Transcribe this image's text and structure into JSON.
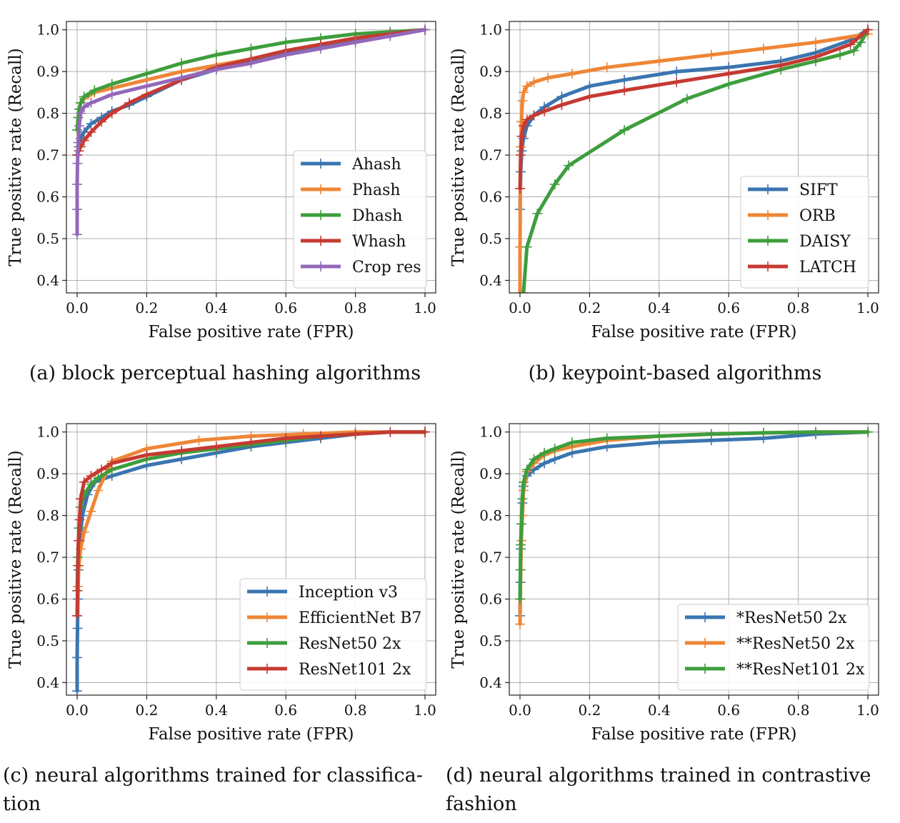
{
  "chart_data": [
    {
      "type": "line",
      "caption": "(a) block perceptual hashing algorithms",
      "xlabel": "False positive rate (FPR)",
      "ylabel": "True positive rate (Recall)",
      "xlim": [
        0.0,
        1.0
      ],
      "ylim": [
        0.37,
        1.02
      ],
      "xticks": [
        "0.0",
        "0.2",
        "0.4",
        "0.6",
        "0.8",
        "1.0"
      ],
      "yticks": [
        "0.4",
        "0.5",
        "0.6",
        "0.7",
        "0.8",
        "0.9",
        "1.0"
      ],
      "grid": true,
      "legend_position": "lower-right",
      "series": [
        {
          "name": "Ahash",
          "color": "#3a75b0",
          "x": [
            0.0,
            0.005,
            0.01,
            0.02,
            0.04,
            0.07,
            0.1,
            0.15,
            0.2,
            0.3,
            0.4,
            0.5,
            0.6,
            0.7,
            0.8,
            0.9,
            1.0
          ],
          "y": [
            0.7,
            0.72,
            0.74,
            0.755,
            0.775,
            0.79,
            0.805,
            0.82,
            0.84,
            0.88,
            0.905,
            0.925,
            0.945,
            0.96,
            0.975,
            0.99,
            1.0
          ]
        },
        {
          "name": "Phash",
          "color": "#ef8636",
          "x": [
            0.0,
            0.003,
            0.006,
            0.01,
            0.02,
            0.05,
            0.1,
            0.2,
            0.3,
            0.4,
            0.5,
            0.6,
            0.7,
            0.8,
            0.9,
            1.0
          ],
          "y": [
            0.76,
            0.79,
            0.81,
            0.825,
            0.835,
            0.85,
            0.86,
            0.88,
            0.9,
            0.915,
            0.93,
            0.95,
            0.965,
            0.98,
            0.99,
            1.0
          ]
        },
        {
          "name": "Dhash",
          "color": "#3d9e3d",
          "x": [
            0.0,
            0.003,
            0.006,
            0.01,
            0.02,
            0.05,
            0.1,
            0.2,
            0.3,
            0.4,
            0.5,
            0.6,
            0.7,
            0.8,
            0.9,
            1.0
          ],
          "y": [
            0.76,
            0.79,
            0.81,
            0.825,
            0.84,
            0.855,
            0.87,
            0.895,
            0.92,
            0.94,
            0.955,
            0.97,
            0.98,
            0.99,
            0.995,
            1.0
          ]
        },
        {
          "name": "Whash",
          "color": "#c53a32",
          "x": [
            0.0,
            0.005,
            0.01,
            0.02,
            0.04,
            0.07,
            0.1,
            0.15,
            0.2,
            0.3,
            0.4,
            0.5,
            0.6,
            0.7,
            0.8,
            0.9,
            1.0
          ],
          "y": [
            0.7,
            0.71,
            0.72,
            0.735,
            0.755,
            0.78,
            0.8,
            0.825,
            0.845,
            0.88,
            0.91,
            0.93,
            0.95,
            0.965,
            0.98,
            0.99,
            1.0
          ]
        },
        {
          "name": "Crop res",
          "color": "#9368b8",
          "x": [
            0.0,
            0.0,
            0.0,
            0.001,
            0.003,
            0.006,
            0.01,
            0.02,
            0.04,
            0.1,
            0.2,
            0.3,
            0.4,
            0.5,
            0.6,
            0.7,
            0.8,
            0.9,
            1.0
          ],
          "y": [
            0.51,
            0.57,
            0.63,
            0.68,
            0.73,
            0.77,
            0.8,
            0.815,
            0.825,
            0.845,
            0.865,
            0.885,
            0.905,
            0.92,
            0.94,
            0.955,
            0.97,
            0.985,
            1.0
          ]
        }
      ]
    },
    {
      "type": "line",
      "caption": "(b) keypoint-based algorithms",
      "xlabel": "False positive rate (FPR)",
      "ylabel": "True positive rate (Recall)",
      "xlim": [
        0.0,
        1.0
      ],
      "ylim": [
        0.37,
        1.02
      ],
      "xticks": [
        "0.0",
        "0.2",
        "0.4",
        "0.6",
        "0.8",
        "1.0"
      ],
      "yticks": [
        "0.4",
        "0.5",
        "0.6",
        "0.7",
        "0.8",
        "0.9",
        "1.0"
      ],
      "grid": true,
      "legend_position": "lower-right",
      "series": [
        {
          "name": "SIFT",
          "color": "#3a75b0",
          "x": [
            0.0,
            0.002,
            0.005,
            0.01,
            0.02,
            0.04,
            0.07,
            0.12,
            0.2,
            0.3,
            0.45,
            0.6,
            0.75,
            0.85,
            0.95,
            1.0
          ],
          "y": [
            0.57,
            0.66,
            0.71,
            0.74,
            0.77,
            0.795,
            0.815,
            0.84,
            0.865,
            0.88,
            0.9,
            0.91,
            0.925,
            0.945,
            0.975,
            1.0
          ]
        },
        {
          "name": "ORB",
          "color": "#ef8636",
          "x": [
            0.0,
            0.0,
            0.001,
            0.002,
            0.004,
            0.007,
            0.01,
            0.02,
            0.04,
            0.08,
            0.15,
            0.25,
            0.4,
            0.55,
            0.7,
            0.85,
            1.0
          ],
          "y": [
            0.37,
            0.48,
            0.62,
            0.72,
            0.78,
            0.83,
            0.85,
            0.865,
            0.875,
            0.885,
            0.895,
            0.91,
            0.925,
            0.94,
            0.955,
            0.97,
            0.99
          ]
        },
        {
          "name": "DAISY",
          "color": "#3d9e3d",
          "x": [
            0.01,
            0.02,
            0.05,
            0.1,
            0.14,
            0.3,
            0.48,
            0.6,
            0.75,
            0.85,
            0.92,
            0.96,
            0.98,
            1.0
          ],
          "y": [
            0.37,
            0.48,
            0.56,
            0.63,
            0.675,
            0.76,
            0.835,
            0.87,
            0.905,
            0.925,
            0.94,
            0.95,
            0.97,
            1.0
          ]
        },
        {
          "name": "LATCH",
          "color": "#c53a32",
          "x": [
            0.0,
            0.002,
            0.005,
            0.01,
            0.02,
            0.04,
            0.07,
            0.12,
            0.2,
            0.3,
            0.45,
            0.6,
            0.75,
            0.85,
            0.95,
            1.0
          ],
          "y": [
            0.62,
            0.7,
            0.745,
            0.77,
            0.785,
            0.795,
            0.805,
            0.82,
            0.84,
            0.855,
            0.875,
            0.895,
            0.915,
            0.935,
            0.965,
            1.0
          ]
        }
      ]
    },
    {
      "type": "line",
      "caption": "(c) neural algorithms trained for classifica-tion",
      "xlabel": "False positive rate (FPR)",
      "ylabel": "True positive rate (Recall)",
      "xlim": [
        0.0,
        1.0
      ],
      "ylim": [
        0.37,
        1.02
      ],
      "xticks": [
        "0.0",
        "0.2",
        "0.4",
        "0.6",
        "0.8",
        "1.0"
      ],
      "yticks": [
        "0.4",
        "0.5",
        "0.6",
        "0.7",
        "0.8",
        "0.9",
        "1.0"
      ],
      "grid": true,
      "legend_position": "lower-right",
      "series": [
        {
          "name": "Inception v3",
          "color": "#3a75b0",
          "x": [
            0.0,
            0.0,
            0.001,
            0.002,
            0.004,
            0.008,
            0.015,
            0.03,
            0.05,
            0.1,
            0.2,
            0.3,
            0.4,
            0.5,
            0.6,
            0.7,
            0.8,
            0.9,
            1.0
          ],
          "y": [
            0.38,
            0.46,
            0.53,
            0.6,
            0.67,
            0.74,
            0.8,
            0.85,
            0.88,
            0.895,
            0.92,
            0.935,
            0.95,
            0.965,
            0.975,
            0.985,
            0.995,
            1.0,
            1.0
          ]
        },
        {
          "name": "EfficientNet B7",
          "color": "#ef8636",
          "x": [
            0.0,
            0.002,
            0.005,
            0.01,
            0.02,
            0.04,
            0.06,
            0.1,
            0.2,
            0.35,
            0.5,
            0.65,
            0.8,
            0.9,
            1.0
          ],
          "y": [
            0.56,
            0.63,
            0.68,
            0.72,
            0.76,
            0.81,
            0.86,
            0.93,
            0.96,
            0.98,
            0.99,
            0.995,
            1.0,
            1.0,
            1.0
          ]
        },
        {
          "name": "ResNet50 2x",
          "color": "#3d9e3d",
          "x": [
            0.0,
            0.002,
            0.005,
            0.01,
            0.02,
            0.04,
            0.06,
            0.1,
            0.2,
            0.3,
            0.4,
            0.5,
            0.6,
            0.7,
            0.8,
            0.9,
            1.0
          ],
          "y": [
            0.62,
            0.7,
            0.77,
            0.82,
            0.85,
            0.875,
            0.89,
            0.91,
            0.935,
            0.95,
            0.96,
            0.97,
            0.98,
            0.99,
            0.995,
            1.0,
            1.0
          ]
        },
        {
          "name": "ResNet101 2x",
          "color": "#c53a32",
          "x": [
            0.0,
            0.001,
            0.002,
            0.004,
            0.007,
            0.01,
            0.02,
            0.04,
            0.07,
            0.1,
            0.2,
            0.3,
            0.4,
            0.5,
            0.6,
            0.7,
            0.8,
            0.9,
            1.0
          ],
          "y": [
            0.56,
            0.62,
            0.68,
            0.74,
            0.79,
            0.84,
            0.88,
            0.895,
            0.91,
            0.925,
            0.945,
            0.955,
            0.965,
            0.975,
            0.985,
            0.99,
            0.995,
            1.0,
            1.0
          ]
        }
      ]
    },
    {
      "type": "line",
      "caption": "(d) neural algorithms trained in contrastive fashion",
      "xlabel": "False positive rate (FPR)",
      "ylabel": "True positive rate (Recall)",
      "xlim": [
        0.0,
        1.0
      ],
      "ylim": [
        0.37,
        1.02
      ],
      "xticks": [
        "0.0",
        "0.2",
        "0.4",
        "0.6",
        "0.8",
        "1.0"
      ],
      "yticks": [
        "0.4",
        "0.5",
        "0.6",
        "0.7",
        "0.8",
        "0.9",
        "1.0"
      ],
      "grid": true,
      "legend_position": "lower-right",
      "series": [
        {
          "name": "*ResNet50 2x",
          "color": "#3a75b0",
          "x": [
            0.0,
            0.001,
            0.002,
            0.004,
            0.007,
            0.01,
            0.02,
            0.04,
            0.07,
            0.1,
            0.15,
            0.25,
            0.4,
            0.55,
            0.7,
            0.85,
            1.0
          ],
          "y": [
            0.56,
            0.64,
            0.72,
            0.78,
            0.83,
            0.87,
            0.895,
            0.91,
            0.925,
            0.935,
            0.95,
            0.965,
            0.975,
            0.98,
            0.985,
            0.995,
            1.0
          ]
        },
        {
          "name": "**ResNet50 2x",
          "color": "#ef8636",
          "x": [
            0.0,
            0.001,
            0.002,
            0.004,
            0.007,
            0.01,
            0.02,
            0.04,
            0.07,
            0.1,
            0.15,
            0.25,
            0.4,
            0.55,
            0.7,
            0.85,
            1.0
          ],
          "y": [
            0.54,
            0.6,
            0.67,
            0.74,
            0.8,
            0.86,
            0.905,
            0.925,
            0.945,
            0.955,
            0.965,
            0.98,
            0.99,
            0.995,
            0.998,
            1.0,
            1.0
          ]
        },
        {
          "name": "**ResNet101 2x",
          "color": "#3d9e3d",
          "x": [
            0.0,
            0.001,
            0.002,
            0.004,
            0.007,
            0.01,
            0.02,
            0.04,
            0.07,
            0.1,
            0.15,
            0.25,
            0.4,
            0.55,
            0.7,
            0.85,
            1.0
          ],
          "y": [
            0.6,
            0.67,
            0.73,
            0.78,
            0.84,
            0.88,
            0.91,
            0.935,
            0.95,
            0.96,
            0.975,
            0.985,
            0.99,
            0.995,
            0.998,
            1.0,
            1.0
          ]
        }
      ]
    }
  ]
}
